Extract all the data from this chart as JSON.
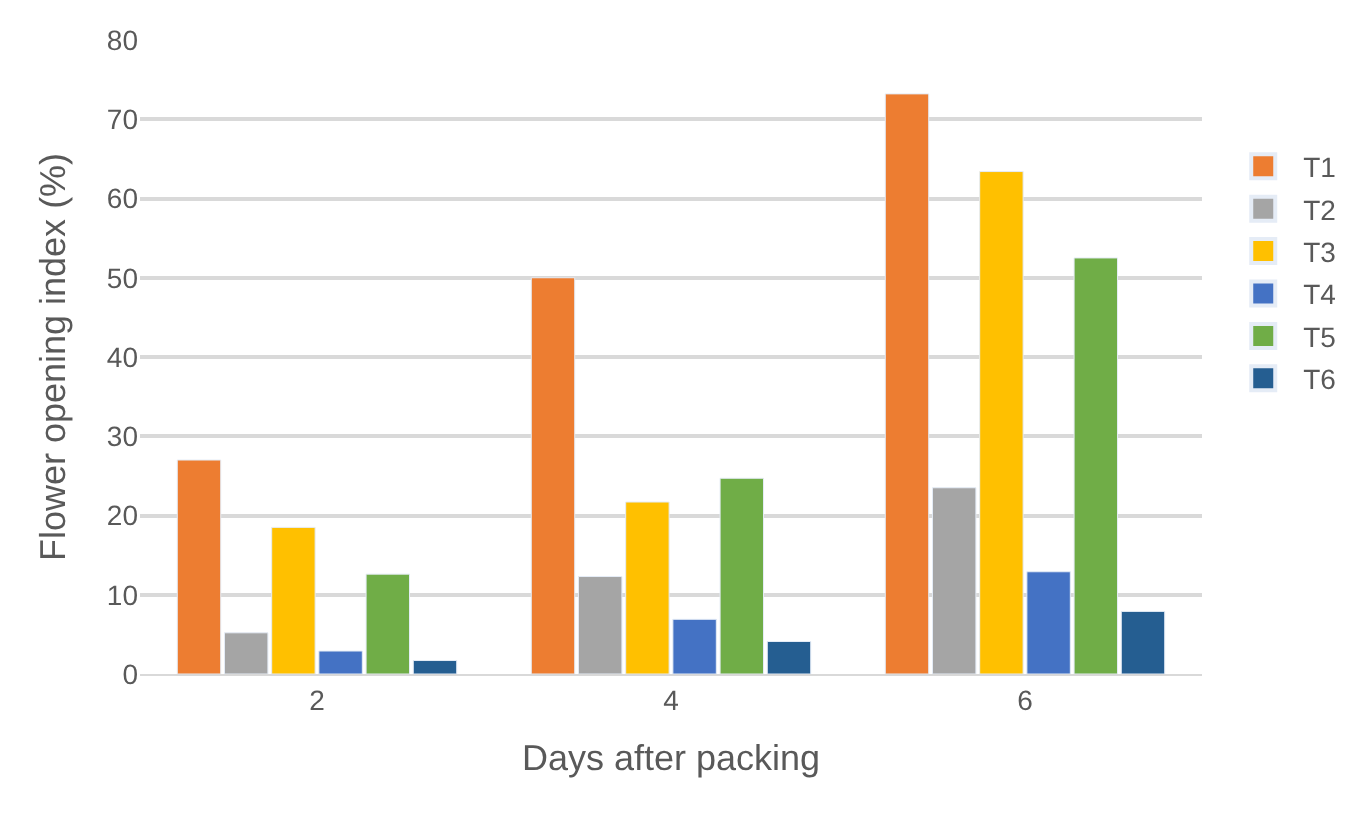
{
  "chart_data": {
    "type": "bar",
    "xlabel": "Days after packing",
    "ylabel": "Flower opening index (%)",
    "categories": [
      "2",
      "4",
      "6"
    ],
    "series": [
      {
        "name": "T1",
        "color": "#ed7d31",
        "values": [
          27,
          50,
          73.2
        ]
      },
      {
        "name": "T2",
        "color": "#a5a5a5",
        "values": [
          5.2,
          12.3,
          23.5
        ]
      },
      {
        "name": "T3",
        "color": "#ffc000",
        "values": [
          18.5,
          21.7,
          63.4
        ]
      },
      {
        "name": "T4",
        "color": "#4472c4",
        "values": [
          2.9,
          6.9,
          12.9
        ]
      },
      {
        "name": "T5",
        "color": "#70ad47",
        "values": [
          12.6,
          24.7,
          52.5
        ]
      },
      {
        "name": "T6",
        "color": "#255e91",
        "values": [
          1.7,
          4.1,
          7.9
        ]
      }
    ],
    "ylim": [
      0,
      80
    ],
    "yticks": [
      0,
      10,
      20,
      30,
      40,
      50,
      60,
      70,
      80
    ],
    "grid": "y",
    "legend": "right"
  }
}
